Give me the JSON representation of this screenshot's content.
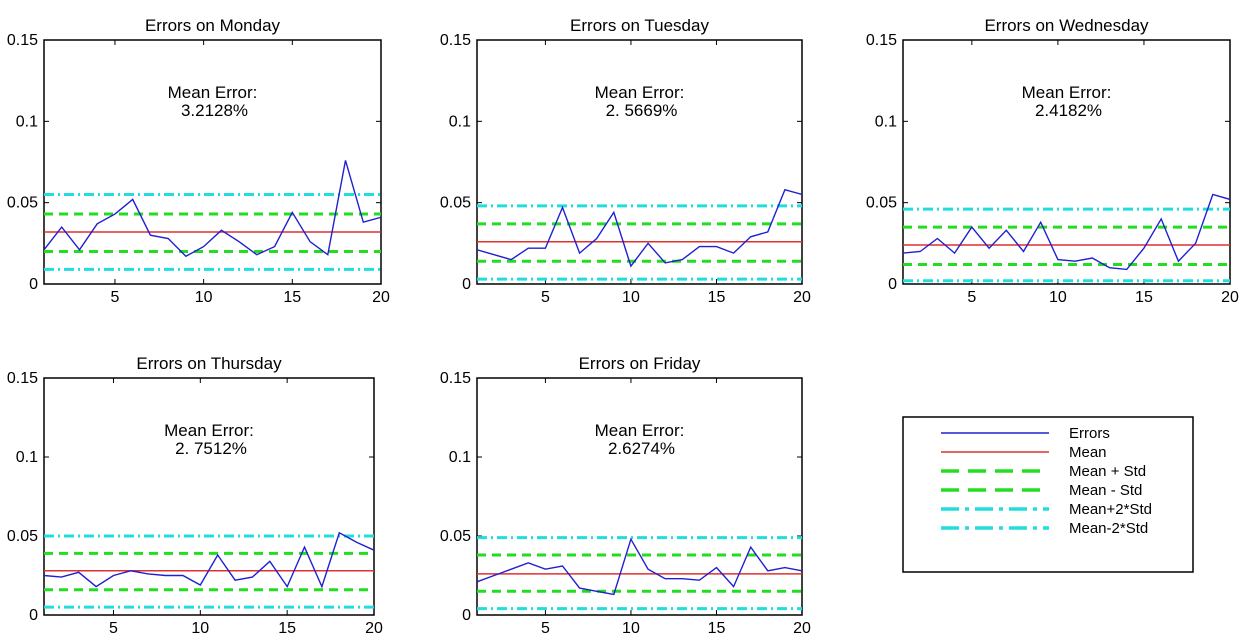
{
  "chart_data": {
    "type": "line",
    "shared_x_ticks": [
      5,
      10,
      15,
      20
    ],
    "shared_y_ticks": [
      "0",
      "0.05",
      "0.1",
      "0.15"
    ],
    "xlim": [
      1,
      20
    ],
    "ylim": [
      0,
      0.15
    ],
    "legend": {
      "placement": "lower-right",
      "entries": [
        {
          "label": "Errors",
          "color": "#2020d0",
          "style": "solid"
        },
        {
          "label": "Mean",
          "color": "#e03030",
          "style": "solid"
        },
        {
          "label": "Mean + Std",
          "color": "#22dd22",
          "style": "dashed"
        },
        {
          "label": "Mean  - Std",
          "color": "#22dd22",
          "style": "dashed"
        },
        {
          "label": "Mean+2*Std",
          "color": "#22dddd",
          "style": "dashdot"
        },
        {
          "label": "Mean-2*Std",
          "color": "#22dddd",
          "style": "dashdot"
        }
      ]
    },
    "charts": [
      {
        "title": "Errors on Monday",
        "annotation_label": "Mean Error:",
        "annotation_value": "3.2128%",
        "x": [
          1,
          2,
          3,
          4,
          5,
          6,
          7,
          8,
          9,
          10,
          11,
          12,
          13,
          14,
          15,
          16,
          17,
          18,
          19,
          20
        ],
        "errors": [
          0.021,
          0.035,
          0.021,
          0.037,
          0.043,
          0.052,
          0.03,
          0.028,
          0.017,
          0.023,
          0.033,
          0.026,
          0.018,
          0.023,
          0.044,
          0.026,
          0.018,
          0.076,
          0.038,
          0.041
        ],
        "mean": 0.032,
        "mean_plus_std": 0.043,
        "mean_minus_std": 0.02,
        "mean_plus_2std": 0.055,
        "mean_minus_2std": 0.009
      },
      {
        "title": "Errors on Tuesday",
        "annotation_label": "Mean Error:",
        "annotation_value": "2. 5669%",
        "x": [
          1,
          2,
          3,
          4,
          5,
          6,
          7,
          8,
          9,
          10,
          11,
          12,
          13,
          14,
          15,
          16,
          17,
          18,
          19,
          20
        ],
        "errors": [
          0.021,
          0.018,
          0.015,
          0.022,
          0.022,
          0.047,
          0.019,
          0.028,
          0.044,
          0.011,
          0.025,
          0.013,
          0.015,
          0.023,
          0.023,
          0.019,
          0.029,
          0.032,
          0.058,
          0.055
        ],
        "mean": 0.026,
        "mean_plus_std": 0.037,
        "mean_minus_std": 0.014,
        "mean_plus_2std": 0.048,
        "mean_minus_2std": 0.003
      },
      {
        "title": "Errors on Wednesday",
        "annotation_label": "Mean Error:",
        "annotation_value": "2.4182%",
        "x": [
          1,
          2,
          3,
          4,
          5,
          6,
          7,
          8,
          9,
          10,
          11,
          12,
          13,
          14,
          15,
          16,
          17,
          18,
          19,
          20
        ],
        "errors": [
          0.019,
          0.02,
          0.028,
          0.019,
          0.035,
          0.022,
          0.033,
          0.02,
          0.038,
          0.015,
          0.014,
          0.016,
          0.01,
          0.009,
          0.022,
          0.04,
          0.014,
          0.025,
          0.055,
          0.052
        ],
        "mean": 0.024,
        "mean_plus_std": 0.035,
        "mean_minus_std": 0.012,
        "mean_plus_2std": 0.046,
        "mean_minus_2std": 0.002
      },
      {
        "title": "Errors on Thursday",
        "annotation_label": "Mean Error:",
        "annotation_value": "2. 7512%",
        "x": [
          1,
          2,
          3,
          4,
          5,
          6,
          7,
          8,
          9,
          10,
          11,
          12,
          13,
          14,
          15,
          16,
          17,
          18,
          19,
          20
        ],
        "errors": [
          0.025,
          0.024,
          0.027,
          0.018,
          0.025,
          0.028,
          0.026,
          0.025,
          0.025,
          0.019,
          0.038,
          0.022,
          0.024,
          0.034,
          0.018,
          0.043,
          0.018,
          0.052,
          0.046,
          0.041
        ],
        "mean": 0.028,
        "mean_plus_std": 0.039,
        "mean_minus_std": 0.016,
        "mean_plus_2std": 0.05,
        "mean_minus_2std": 0.005
      },
      {
        "title": "Errors on Friday",
        "annotation_label": "Mean Error:",
        "annotation_value": "2.6274%",
        "x": [
          1,
          2,
          3,
          4,
          5,
          6,
          7,
          8,
          9,
          10,
          11,
          12,
          13,
          14,
          15,
          16,
          17,
          18,
          19,
          20
        ],
        "errors": [
          0.021,
          0.025,
          0.029,
          0.033,
          0.029,
          0.031,
          0.017,
          0.015,
          0.013,
          0.048,
          0.029,
          0.023,
          0.023,
          0.022,
          0.03,
          0.018,
          0.043,
          0.028,
          0.03,
          0.028
        ],
        "mean": 0.026,
        "mean_plus_std": 0.038,
        "mean_minus_std": 0.015,
        "mean_plus_2std": 0.049,
        "mean_minus_2std": 0.004
      }
    ]
  }
}
